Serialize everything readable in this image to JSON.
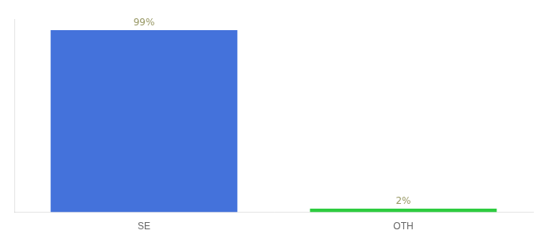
{
  "chart_data": {
    "type": "bar",
    "categories": [
      "SE",
      "OTH"
    ],
    "values": [
      99,
      2
    ],
    "value_labels": [
      "99%",
      "2%"
    ],
    "data_labels": true,
    "colors": [
      "#4472db",
      "#2ecc40"
    ],
    "ylim": [
      0,
      105
    ],
    "grid": false,
    "tick_labels": "x"
  }
}
